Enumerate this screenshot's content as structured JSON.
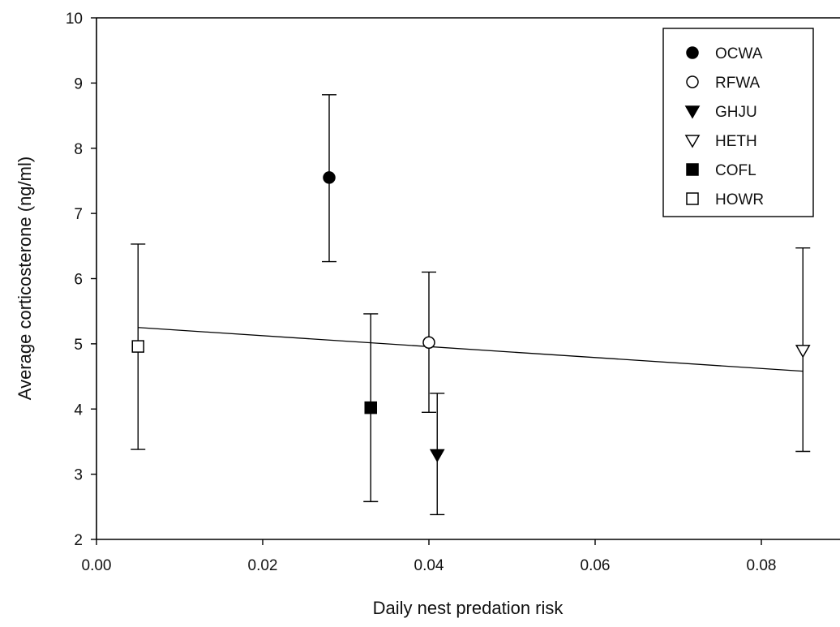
{
  "chart_data": {
    "type": "scatter",
    "title": "",
    "xlabel": "Daily nest predation risk",
    "ylabel": "Average corticosterone (ng/ml)",
    "xlim": [
      0.0,
      0.09
    ],
    "ylim": [
      2,
      10
    ],
    "xticks": [
      "0.00",
      "0.02",
      "0.04",
      "0.06",
      "0.08"
    ],
    "yticks": [
      "2",
      "3",
      "4",
      "5",
      "6",
      "7",
      "8",
      "9",
      "10"
    ],
    "grid": false,
    "legend_position": "top-right",
    "series": [
      {
        "name": "OCWA",
        "marker": "circle",
        "filled": true,
        "x": 0.028,
        "y": 7.55,
        "err_low": 6.26,
        "err_high": 8.82
      },
      {
        "name": "RFWA",
        "marker": "circle",
        "filled": false,
        "x": 0.04,
        "y": 5.02,
        "err_low": 3.95,
        "err_high": 6.1
      },
      {
        "name": "GHJU",
        "marker": "triangle-down",
        "filled": true,
        "x": 0.041,
        "y": 3.3,
        "err_low": 2.38,
        "err_high": 4.24
      },
      {
        "name": "HETH",
        "marker": "triangle-down",
        "filled": false,
        "x": 0.085,
        "y": 4.9,
        "err_low": 3.35,
        "err_high": 6.47
      },
      {
        "name": "COFL",
        "marker": "square",
        "filled": true,
        "x": 0.033,
        "y": 4.02,
        "err_low": 2.58,
        "err_high": 5.46
      },
      {
        "name": "HOWR",
        "marker": "square",
        "filled": false,
        "x": 0.005,
        "y": 4.96,
        "err_low": 3.38,
        "err_high": 6.53
      }
    ],
    "regression_line": {
      "x": [
        0.005,
        0.085
      ],
      "y": [
        5.25,
        4.58
      ]
    }
  }
}
